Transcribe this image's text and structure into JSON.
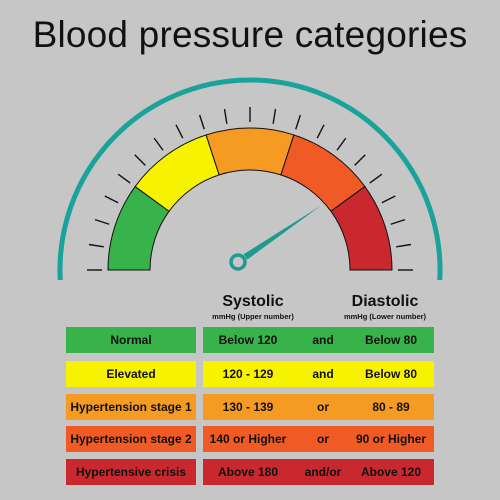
{
  "title": "Blood pressure categories",
  "colors": {
    "background": "#c6c6c6",
    "outer_arc": "#1aa39a",
    "normal": "#38b24a",
    "elevated": "#f7f200",
    "stage1": "#f59a23",
    "stage2": "#f05a24",
    "crisis": "#c8282e",
    "needle": "#1f9a90"
  },
  "gauge": {
    "needle_value": 0.81
  },
  "headers": {
    "systolic": "Systolic",
    "systolic_sub": "mmHg (Upper number)",
    "diastolic": "Diastolic",
    "diastolic_sub": "mmHg (Lower number)"
  },
  "rows": [
    {
      "category": "Normal",
      "systolic": "Below 120",
      "conj": "and",
      "diastolic": "Below 80",
      "color": "#38b24a"
    },
    {
      "category": "Elevated",
      "systolic": "120 - 129",
      "conj": "and",
      "diastolic": "Below 80",
      "color": "#f7f200"
    },
    {
      "category": "Hypertension stage 1",
      "systolic": "130 - 139",
      "conj": "or",
      "diastolic": "80 - 89",
      "color": "#f59a23"
    },
    {
      "category": "Hypertension stage 2",
      "systolic": "140 or Higher",
      "conj": "or",
      "diastolic": "90 or Higher",
      "color": "#f05a24"
    },
    {
      "category": "Hypertensive crisis",
      "systolic": "Above 180",
      "conj": "and/or",
      "diastolic": "Above 120",
      "color": "#c8282e"
    }
  ]
}
